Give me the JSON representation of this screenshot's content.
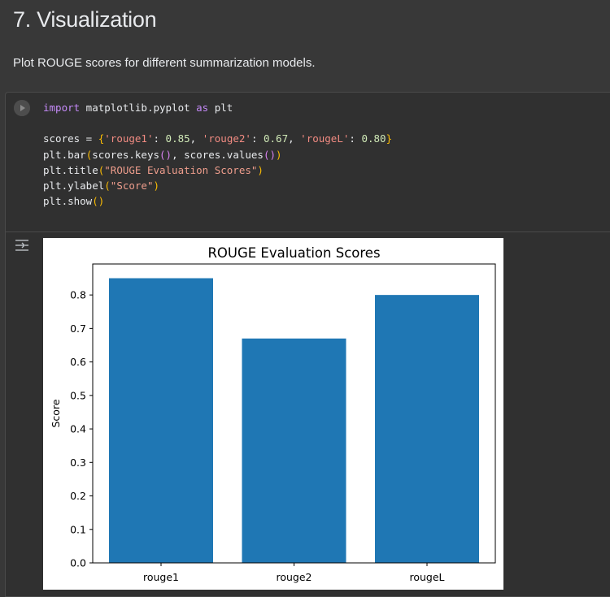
{
  "section": {
    "heading": "7. Visualization",
    "description": "Plot ROUGE scores for different summarization models."
  },
  "code_cell": {
    "run_icon": "play-circle-icon",
    "lines": [
      [
        {
          "t": "import",
          "c": "kw"
        },
        {
          "t": " matplotlib.pyplot "
        },
        {
          "t": "as",
          "c": "kw"
        },
        {
          "t": " plt"
        }
      ],
      [],
      [
        {
          "t": "scores = "
        },
        {
          "t": "{",
          "c": "br1"
        },
        {
          "t": "'rouge1'",
          "c": "str"
        },
        {
          "t": ": "
        },
        {
          "t": "0.85",
          "c": "num"
        },
        {
          "t": ", "
        },
        {
          "t": "'rouge2'",
          "c": "str"
        },
        {
          "t": ": "
        },
        {
          "t": "0.67",
          "c": "num"
        },
        {
          "t": ", "
        },
        {
          "t": "'rougeL'",
          "c": "str"
        },
        {
          "t": ": "
        },
        {
          "t": "0.80",
          "c": "num"
        },
        {
          "t": "}",
          "c": "br1"
        }
      ],
      [
        {
          "t": "plt.bar"
        },
        {
          "t": "(",
          "c": "br1"
        },
        {
          "t": "scores.keys"
        },
        {
          "t": "()",
          "c": "br2"
        },
        {
          "t": ", scores.values"
        },
        {
          "t": "()",
          "c": "br2"
        },
        {
          "t": ")",
          "c": "br1"
        }
      ],
      [
        {
          "t": "plt.title"
        },
        {
          "t": "(",
          "c": "br1"
        },
        {
          "t": "\"ROUGE Evaluation Scores\"",
          "c": "strg"
        },
        {
          "t": ")",
          "c": "br1"
        }
      ],
      [
        {
          "t": "plt.ylabel"
        },
        {
          "t": "(",
          "c": "br1"
        },
        {
          "t": "\"Score\"",
          "c": "strg"
        },
        {
          "t": ")",
          "c": "br1"
        }
      ],
      [
        {
          "t": "plt.show"
        },
        {
          "t": "()",
          "c": "br1"
        }
      ]
    ]
  },
  "output": {
    "icon": "output-toggle-icon"
  },
  "chart_data": {
    "type": "bar",
    "title": "ROUGE Evaluation Scores",
    "xlabel": "",
    "ylabel": "Score",
    "categories": [
      "rouge1",
      "rouge2",
      "rougeL"
    ],
    "values": [
      0.85,
      0.67,
      0.8
    ],
    "ylim": [
      0,
      0.8925
    ],
    "yticks": [
      0.0,
      0.1,
      0.2,
      0.3,
      0.4,
      0.5,
      0.6,
      0.7,
      0.8
    ],
    "ytick_labels": [
      "0.0",
      "0.1",
      "0.2",
      "0.3",
      "0.4",
      "0.5",
      "0.6",
      "0.7",
      "0.8"
    ],
    "bar_color": "#1f77b4",
    "grid": false
  }
}
